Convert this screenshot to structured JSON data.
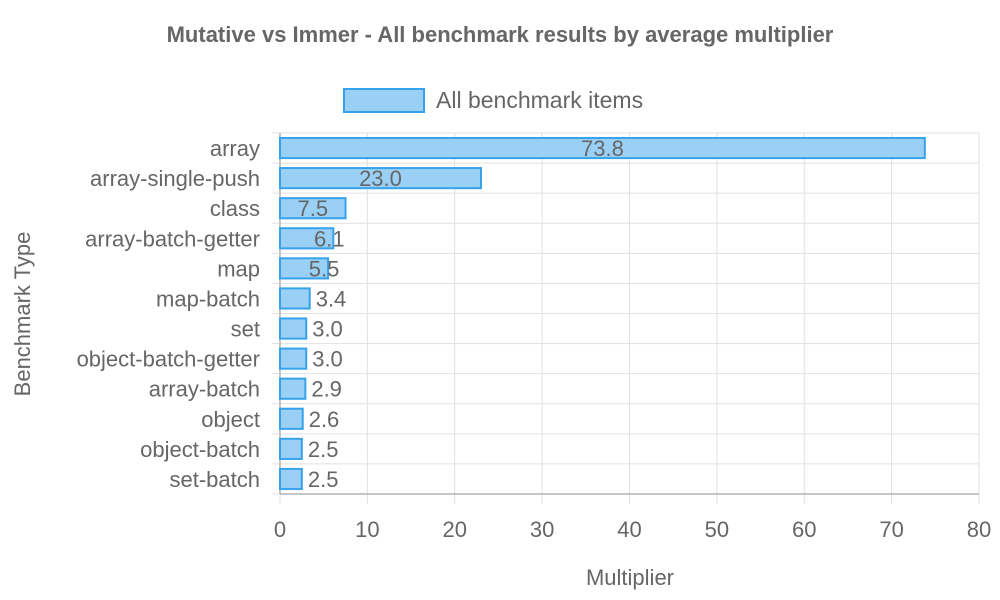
{
  "chart_data": {
    "type": "bar",
    "orientation": "horizontal",
    "title": "Mutative vs Immer - All benchmark results by average multiplier",
    "xlabel": "Multiplier",
    "ylabel": "Benchmark Type",
    "xlim": [
      0,
      80
    ],
    "xticks": [
      0,
      10,
      20,
      30,
      40,
      50,
      60,
      70,
      80
    ],
    "grid": true,
    "legend_position": "top",
    "categories": [
      "array",
      "array-single-push",
      "class",
      "array-batch-getter",
      "map",
      "map-batch",
      "set",
      "object-batch-getter",
      "array-batch",
      "object",
      "object-batch",
      "set-batch"
    ],
    "series": [
      {
        "name": "All benchmark items",
        "values": [
          73.8,
          23.0,
          7.5,
          6.1,
          5.5,
          3.4,
          3.0,
          3.0,
          2.9,
          2.6,
          2.5,
          2.5
        ],
        "labels": [
          "73.8",
          "23.0",
          "7.5",
          "6.1",
          "5.5",
          "3.4",
          "3.0",
          "3.0",
          "2.9",
          "2.6",
          "2.5",
          "2.5"
        ],
        "fill": "#9ad0f5",
        "stroke": "#36a2eb"
      }
    ]
  }
}
